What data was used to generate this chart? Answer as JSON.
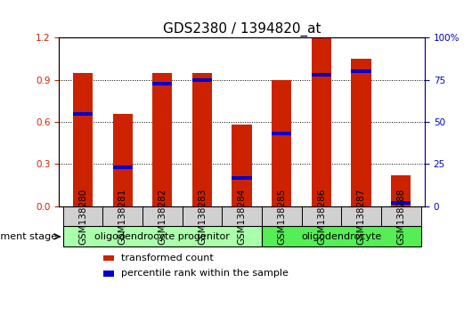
{
  "title": "GDS2380 / 1394820_at",
  "samples": [
    "GSM138280",
    "GSM138281",
    "GSM138282",
    "GSM138283",
    "GSM138284",
    "GSM138285",
    "GSM138286",
    "GSM138287",
    "GSM138288"
  ],
  "red_values": [
    0.95,
    0.66,
    0.95,
    0.95,
    0.58,
    0.9,
    1.2,
    1.05,
    0.22
  ],
  "blue_values": [
    0.55,
    0.23,
    0.73,
    0.75,
    0.17,
    0.43,
    0.78,
    0.8,
    0.02
  ],
  "ylim_left": [
    0,
    1.2
  ],
  "ylim_right": [
    0,
    100
  ],
  "yticks_left": [
    0,
    0.3,
    0.6,
    0.9,
    1.2
  ],
  "yticks_right": [
    0,
    25,
    50,
    75,
    100
  ],
  "ytick_labels_right": [
    "0",
    "25",
    "50",
    "75",
    "100%"
  ],
  "red_color": "#cc2200",
  "blue_color": "#0000cc",
  "bar_width": 0.5,
  "groups": [
    {
      "label": "oligodendrocyte progenitor",
      "start": 0,
      "end": 5,
      "color": "#aaffaa"
    },
    {
      "label": "oligodendrocyte",
      "start": 5,
      "end": 9,
      "color": "#55ee55"
    }
  ],
  "group_label_prefix": "development stage",
  "legend_items": [
    {
      "label": "transformed count",
      "color": "#cc2200"
    },
    {
      "label": "percentile rank within the sample",
      "color": "#0000cc"
    }
  ],
  "tick_bg_color": "#d0d0d0",
  "plot_bg_color": "#ffffff",
  "title_fontsize": 11,
  "tick_fontsize": 7.5,
  "legend_fontsize": 8,
  "group_fontsize": 8
}
